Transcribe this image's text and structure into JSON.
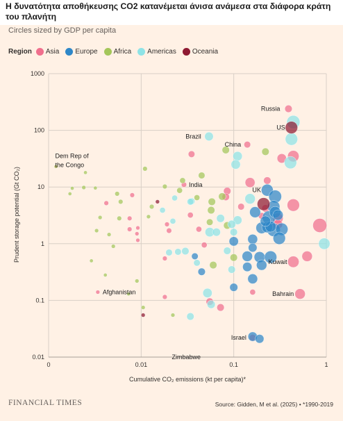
{
  "header": {
    "title": "Η δυνατότητα αποθήκευσης CO2 κατανέμεται άνισα ανάμεσα στα διάφορα κράτη του πλανήτη",
    "subtitle": "Circles sized by GDP per capita"
  },
  "legend": {
    "title": "Region",
    "items": [
      {
        "label": "Asia",
        "color": "#f06f8d"
      },
      {
        "label": "Europe",
        "color": "#2e87c8"
      },
      {
        "label": "Africa",
        "color": "#a4c65a"
      },
      {
        "label": "Americas",
        "color": "#8ee3e6"
      },
      {
        "label": "Oceania",
        "color": "#8e1a32"
      }
    ]
  },
  "footer": {
    "brand": "FINANCIAL TIMES",
    "source": "Source: Gidden, M et al. (2025) • *1990-2019"
  },
  "chart_data": {
    "type": "scatter",
    "xlabel": "Cumulative CO₂ emissions (kt per capita)*",
    "ylabel": "Prudent storage potential (Gt CO₂)",
    "xscale": "log",
    "yscale": "log",
    "xlim": [
      0.001,
      1
    ],
    "ylim": [
      0.01,
      1000
    ],
    "x_ticks": [
      "0",
      "0.01",
      "0.1",
      "1"
    ],
    "y_ticks": [
      "0.01",
      "0.1",
      "1",
      "10",
      "100",
      "1000"
    ],
    "grid": true,
    "labels": [
      {
        "text": "Russia",
        "x": 0.37,
        "y": 240
      },
      {
        "text": "US",
        "x": 0.42,
        "y": 112
      },
      {
        "text": "Brazil",
        "x": 0.052,
        "y": 78
      },
      {
        "text": "China",
        "x": 0.14,
        "y": 56
      },
      {
        "text": "Dem Rep of the Congo",
        "x": 0.0012,
        "y": 23
      },
      {
        "text": "India",
        "x": 0.029,
        "y": 11
      },
      {
        "text": "UK",
        "x": 0.23,
        "y": 8.8
      },
      {
        "text": "Kuwait",
        "x": 0.44,
        "y": 0.48
      },
      {
        "text": "Afghanistan",
        "x": 0.0034,
        "y": 0.14
      },
      {
        "text": "Bahrain",
        "x": 0.52,
        "y": 0.13
      },
      {
        "text": "Israel",
        "x": 0.16,
        "y": 0.022
      },
      {
        "text": "Zimbabwe",
        "x": 0.019,
        "y": 0.01
      }
    ],
    "series": [
      {
        "name": "Asia",
        "points": [
          {
            "x": 0.39,
            "y": 240,
            "g": 0.5
          },
          {
            "x": 0.14,
            "y": 56,
            "g": 0.4
          },
          {
            "x": 0.0012,
            "y": 23,
            "g": 0.1
          },
          {
            "x": 0.029,
            "y": 11,
            "g": 0.25
          },
          {
            "x": 0.44,
            "y": 0.48,
            "g": 1.2
          },
          {
            "x": 0.0034,
            "y": 0.14,
            "g": 0.15
          },
          {
            "x": 0.52,
            "y": 0.13,
            "g": 1.0
          },
          {
            "x": 0.16,
            "y": 0.022,
            "g": 0.4
          },
          {
            "x": 0.035,
            "y": 38,
            "g": 0.4
          },
          {
            "x": 0.23,
            "y": 13,
            "g": 0.5
          },
          {
            "x": 0.33,
            "y": 32,
            "g": 0.8
          },
          {
            "x": 0.44,
            "y": 35,
            "g": 1.2
          },
          {
            "x": 0.15,
            "y": 12,
            "g": 0.9
          },
          {
            "x": 0.085,
            "y": 8.5,
            "g": 0.5
          },
          {
            "x": 0.082,
            "y": 6.7,
            "g": 0.5
          },
          {
            "x": 0.12,
            "y": 4.5,
            "g": 0.4
          },
          {
            "x": 0.22,
            "y": 4.2,
            "g": 0.5
          },
          {
            "x": 0.3,
            "y": 2.8,
            "g": 1.0
          },
          {
            "x": 0.44,
            "y": 4.8,
            "g": 1.4
          },
          {
            "x": 0.85,
            "y": 2.1,
            "g": 1.8
          },
          {
            "x": 0.62,
            "y": 0.6,
            "g": 1.0
          },
          {
            "x": 0.008,
            "y": 7.2,
            "g": 0.2
          },
          {
            "x": 0.0042,
            "y": 5.2,
            "g": 0.2
          },
          {
            "x": 0.0075,
            "y": 2.8,
            "g": 0.2
          },
          {
            "x": 0.0092,
            "y": 1.9,
            "g": 0.15
          },
          {
            "x": 0.009,
            "y": 1.5,
            "g": 0.15
          },
          {
            "x": 0.0075,
            "y": 1.8,
            "g": 0.2
          },
          {
            "x": 0.0092,
            "y": 1.15,
            "g": 0.15
          },
          {
            "x": 0.019,
            "y": 2.2,
            "g": 0.2
          },
          {
            "x": 0.02,
            "y": 1.7,
            "g": 0.25
          },
          {
            "x": 0.042,
            "y": 1.8,
            "g": 0.3
          },
          {
            "x": 0.048,
            "y": 0.95,
            "g": 0.3
          },
          {
            "x": 0.018,
            "y": 0.55,
            "g": 0.2
          },
          {
            "x": 0.018,
            "y": 0.115,
            "g": 0.2
          },
          {
            "x": 0.055,
            "y": 0.095,
            "g": 0.5
          },
          {
            "x": 0.072,
            "y": 0.075,
            "g": 0.5
          },
          {
            "x": 0.034,
            "y": 3.2,
            "g": 0.3
          },
          {
            "x": 0.3,
            "y": 2.2,
            "g": 0.8
          },
          {
            "x": 0.2,
            "y": 3.1,
            "g": 0.4
          },
          {
            "x": 0.16,
            "y": 0.14,
            "g": 0.3
          }
        ]
      },
      {
        "name": "Europe",
        "points": [
          {
            "x": 0.23,
            "y": 8.8,
            "g": 1.3
          },
          {
            "x": 0.28,
            "y": 6.8,
            "g": 1.5
          },
          {
            "x": 0.27,
            "y": 4.5,
            "g": 1.4
          },
          {
            "x": 0.17,
            "y": 3.6,
            "g": 1.1
          },
          {
            "x": 0.24,
            "y": 2.9,
            "g": 1.6
          },
          {
            "x": 0.2,
            "y": 1.9,
            "g": 1.2
          },
          {
            "x": 0.27,
            "y": 1.75,
            "g": 1.6
          },
          {
            "x": 0.33,
            "y": 1.8,
            "g": 1.4
          },
          {
            "x": 0.31,
            "y": 1.25,
            "g": 1.4
          },
          {
            "x": 0.16,
            "y": 1.2,
            "g": 0.9
          },
          {
            "x": 0.23,
            "y": 1.95,
            "g": 1.1
          },
          {
            "x": 0.28,
            "y": 3.6,
            "g": 1.2
          },
          {
            "x": 0.1,
            "y": 1.1,
            "g": 0.8
          },
          {
            "x": 0.16,
            "y": 0.85,
            "g": 0.7
          },
          {
            "x": 0.14,
            "y": 0.6,
            "g": 1.0
          },
          {
            "x": 0.19,
            "y": 0.58,
            "g": 1.1
          },
          {
            "x": 0.25,
            "y": 0.58,
            "g": 1.4
          },
          {
            "x": 0.2,
            "y": 0.42,
            "g": 1.0
          },
          {
            "x": 0.14,
            "y": 0.39,
            "g": 0.8
          },
          {
            "x": 0.16,
            "y": 0.24,
            "g": 0.9
          },
          {
            "x": 0.1,
            "y": 0.17,
            "g": 0.6
          },
          {
            "x": 0.16,
            "y": 0.023,
            "g": 0.8
          },
          {
            "x": 0.19,
            "y": 0.021,
            "g": 0.7
          },
          {
            "x": 0.3,
            "y": 3.2,
            "g": 1.0
          },
          {
            "x": 0.045,
            "y": 0.32,
            "g": 0.5
          },
          {
            "x": 0.038,
            "y": 0.6,
            "g": 0.4
          },
          {
            "x": 0.25,
            "y": 2.0,
            "g": 1.1
          },
          {
            "x": 0.22,
            "y": 2.5,
            "g": 1.0
          }
        ]
      },
      {
        "name": "Africa",
        "points": [
          {
            "x": 0.0012,
            "y": 23,
            "g": 0.12
          },
          {
            "x": 0.0025,
            "y": 18,
            "g": 0.12
          },
          {
            "x": 0.0024,
            "y": 9.8,
            "g": 0.15
          },
          {
            "x": 0.0018,
            "y": 9.5,
            "g": 0.12
          },
          {
            "x": 0.0017,
            "y": 7.6,
            "g": 0.12
          },
          {
            "x": 0.0055,
            "y": 7.6,
            "g": 0.2
          },
          {
            "x": 0.0032,
            "y": 9.6,
            "g": 0.12
          },
          {
            "x": 0.006,
            "y": 5.5,
            "g": 0.2
          },
          {
            "x": 0.013,
            "y": 4.5,
            "g": 0.2
          },
          {
            "x": 0.011,
            "y": 21,
            "g": 0.2
          },
          {
            "x": 0.026,
            "y": 8.7,
            "g": 0.3
          },
          {
            "x": 0.028,
            "y": 13,
            "g": 0.3
          },
          {
            "x": 0.04,
            "y": 6.5,
            "g": 0.3
          },
          {
            "x": 0.045,
            "y": 16,
            "g": 0.4
          },
          {
            "x": 0.058,
            "y": 5.5,
            "g": 0.5
          },
          {
            "x": 0.057,
            "y": 3.9,
            "g": 0.5
          },
          {
            "x": 0.075,
            "y": 6.8,
            "g": 0.5
          },
          {
            "x": 0.082,
            "y": 45,
            "g": 0.5
          },
          {
            "x": 0.22,
            "y": 42,
            "g": 0.5
          },
          {
            "x": 0.055,
            "y": 2.4,
            "g": 0.4
          },
          {
            "x": 0.085,
            "y": 2.1,
            "g": 0.5
          },
          {
            "x": 0.018,
            "y": 10.2,
            "g": 0.2
          },
          {
            "x": 0.0036,
            "y": 2.9,
            "g": 0.15
          },
          {
            "x": 0.0058,
            "y": 2.8,
            "g": 0.2
          },
          {
            "x": 0.0033,
            "y": 1.7,
            "g": 0.15
          },
          {
            "x": 0.0045,
            "y": 1.45,
            "g": 0.15
          },
          {
            "x": 0.0029,
            "y": 0.5,
            "g": 0.12
          },
          {
            "x": 0.0041,
            "y": 0.28,
            "g": 0.12
          },
          {
            "x": 0.005,
            "y": 0.9,
            "g": 0.15
          },
          {
            "x": 0.009,
            "y": 0.22,
            "g": 0.15
          },
          {
            "x": 0.0105,
            "y": 0.075,
            "g": 0.15
          },
          {
            "x": 0.022,
            "y": 0.055,
            "g": 0.15
          },
          {
            "x": 0.1,
            "y": 0.57,
            "g": 0.5
          },
          {
            "x": 0.06,
            "y": 0.42,
            "g": 0.5
          },
          {
            "x": 0.012,
            "y": 3.0,
            "g": 0.15
          },
          {
            "x": 0.0073,
            "y": 0.13,
            "g": 0.12
          }
        ]
      },
      {
        "name": "Americas",
        "points": [
          {
            "x": 0.054,
            "y": 78,
            "g": 0.7
          },
          {
            "x": 0.44,
            "y": 140,
            "g": 1.6
          },
          {
            "x": 0.42,
            "y": 70,
            "g": 1.4
          },
          {
            "x": 0.11,
            "y": 35,
            "g": 0.8
          },
          {
            "x": 0.105,
            "y": 25,
            "g": 0.8
          },
          {
            "x": 0.15,
            "y": 6.2,
            "g": 1.0
          },
          {
            "x": 0.41,
            "y": 27,
            "g": 1.4
          },
          {
            "x": 0.95,
            "y": 1.0,
            "g": 1.2
          },
          {
            "x": 0.055,
            "y": 1.6,
            "g": 0.8
          },
          {
            "x": 0.11,
            "y": 2.6,
            "g": 0.7
          },
          {
            "x": 0.095,
            "y": 2.2,
            "g": 0.6
          },
          {
            "x": 0.072,
            "y": 2.8,
            "g": 0.6
          },
          {
            "x": 0.065,
            "y": 1.6,
            "g": 0.6
          },
          {
            "x": 0.035,
            "y": 5.6,
            "g": 0.4
          },
          {
            "x": 0.034,
            "y": 5.5,
            "g": 0.4
          },
          {
            "x": 0.017,
            "y": 3.9,
            "g": 0.3
          },
          {
            "x": 0.023,
            "y": 6.4,
            "g": 0.3
          },
          {
            "x": 0.022,
            "y": 2.5,
            "g": 0.3
          },
          {
            "x": 0.02,
            "y": 0.7,
            "g": 0.4
          },
          {
            "x": 0.025,
            "y": 0.72,
            "g": 0.4
          },
          {
            "x": 0.03,
            "y": 0.74,
            "g": 0.5
          },
          {
            "x": 0.085,
            "y": 0.75,
            "g": 0.5
          },
          {
            "x": 0.095,
            "y": 0.35,
            "g": 0.5
          },
          {
            "x": 0.052,
            "y": 0.135,
            "g": 0.8
          },
          {
            "x": 0.057,
            "y": 0.085,
            "g": 0.6
          },
          {
            "x": 0.034,
            "y": 0.052,
            "g": 0.5
          },
          {
            "x": 0.04,
            "y": 0.46,
            "g": 0.4
          },
          {
            "x": 0.1,
            "y": 1.6,
            "g": 0.5
          }
        ]
      },
      {
        "name": "Oceania",
        "points": [
          {
            "x": 0.42,
            "y": 112,
            "g": 1.4
          },
          {
            "x": 0.21,
            "y": 5.0,
            "g": 1.5
          },
          {
            "x": 0.015,
            "y": 5.5,
            "g": 0.15
          },
          {
            "x": 0.0105,
            "y": 0.055,
            "g": 0.15
          }
        ]
      }
    ]
  }
}
